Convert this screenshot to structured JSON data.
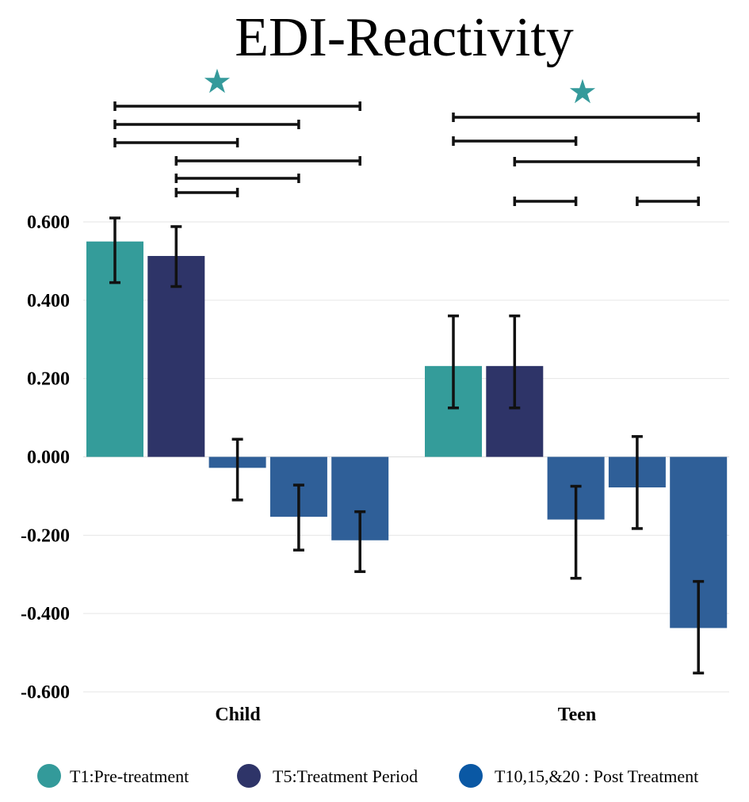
{
  "chart_data": {
    "type": "bar",
    "title": "EDI-Reactivity",
    "xlabel": "",
    "ylabel": "",
    "ylim": [
      -0.6,
      0.6
    ],
    "yticks": [
      0.6,
      0.4,
      0.2,
      0.0,
      -0.2,
      -0.4,
      -0.6
    ],
    "ytick_labels": [
      "0.600",
      "0.400",
      "0.200",
      "0.000",
      "-0.200",
      "-0.400",
      "-0.600"
    ],
    "grid": true,
    "legend_position": "bottom",
    "groups": [
      {
        "label": "Child",
        "bars": [
          {
            "value": 0.55,
            "err_low": 0.445,
            "err_high": 0.61,
            "legend": 0
          },
          {
            "value": 0.513,
            "err_low": 0.435,
            "err_high": 0.588,
            "legend": 1
          },
          {
            "value": -0.028,
            "err_low": -0.11,
            "err_high": 0.045,
            "legend": 2
          },
          {
            "value": -0.153,
            "err_low": -0.238,
            "err_high": -0.072,
            "legend": 2
          },
          {
            "value": -0.213,
            "err_low": -0.293,
            "err_high": -0.14,
            "legend": 2
          }
        ],
        "significance_marker": "★",
        "brackets": [
          [
            0,
            4
          ],
          [
            0,
            3
          ],
          [
            0,
            2
          ],
          [
            1,
            4
          ],
          [
            1,
            3
          ],
          [
            1,
            2
          ]
        ]
      },
      {
        "label": "Teen",
        "bars": [
          {
            "value": 0.232,
            "err_low": 0.125,
            "err_high": 0.36,
            "legend": 0
          },
          {
            "value": 0.232,
            "err_low": 0.125,
            "err_high": 0.36,
            "legend": 1
          },
          {
            "value": -0.16,
            "err_low": -0.31,
            "err_high": -0.075,
            "legend": 2
          },
          {
            "value": -0.078,
            "err_low": -0.183,
            "err_high": 0.052,
            "legend": 2
          },
          {
            "value": -0.437,
            "err_low": -0.552,
            "err_high": -0.318,
            "legend": 2
          }
        ],
        "significance_marker": "★",
        "brackets": [
          [
            0,
            4
          ],
          [
            0,
            2
          ],
          [
            1,
            4
          ],
          [
            1,
            2
          ],
          [
            3,
            4
          ]
        ]
      }
    ],
    "legend": [
      {
        "label": "T1:Pre-treatment",
        "color": "#339A9A"
      },
      {
        "label": "T5:Treatment Period",
        "color": "#2E3468"
      },
      {
        "label": "T10,15,&20 : Post Treatment",
        "color": "#0A58A4"
      }
    ],
    "bar_colors": [
      "#349C9A",
      "#2E3468",
      "#2F5F98"
    ],
    "marker_color": "#359A9B"
  }
}
